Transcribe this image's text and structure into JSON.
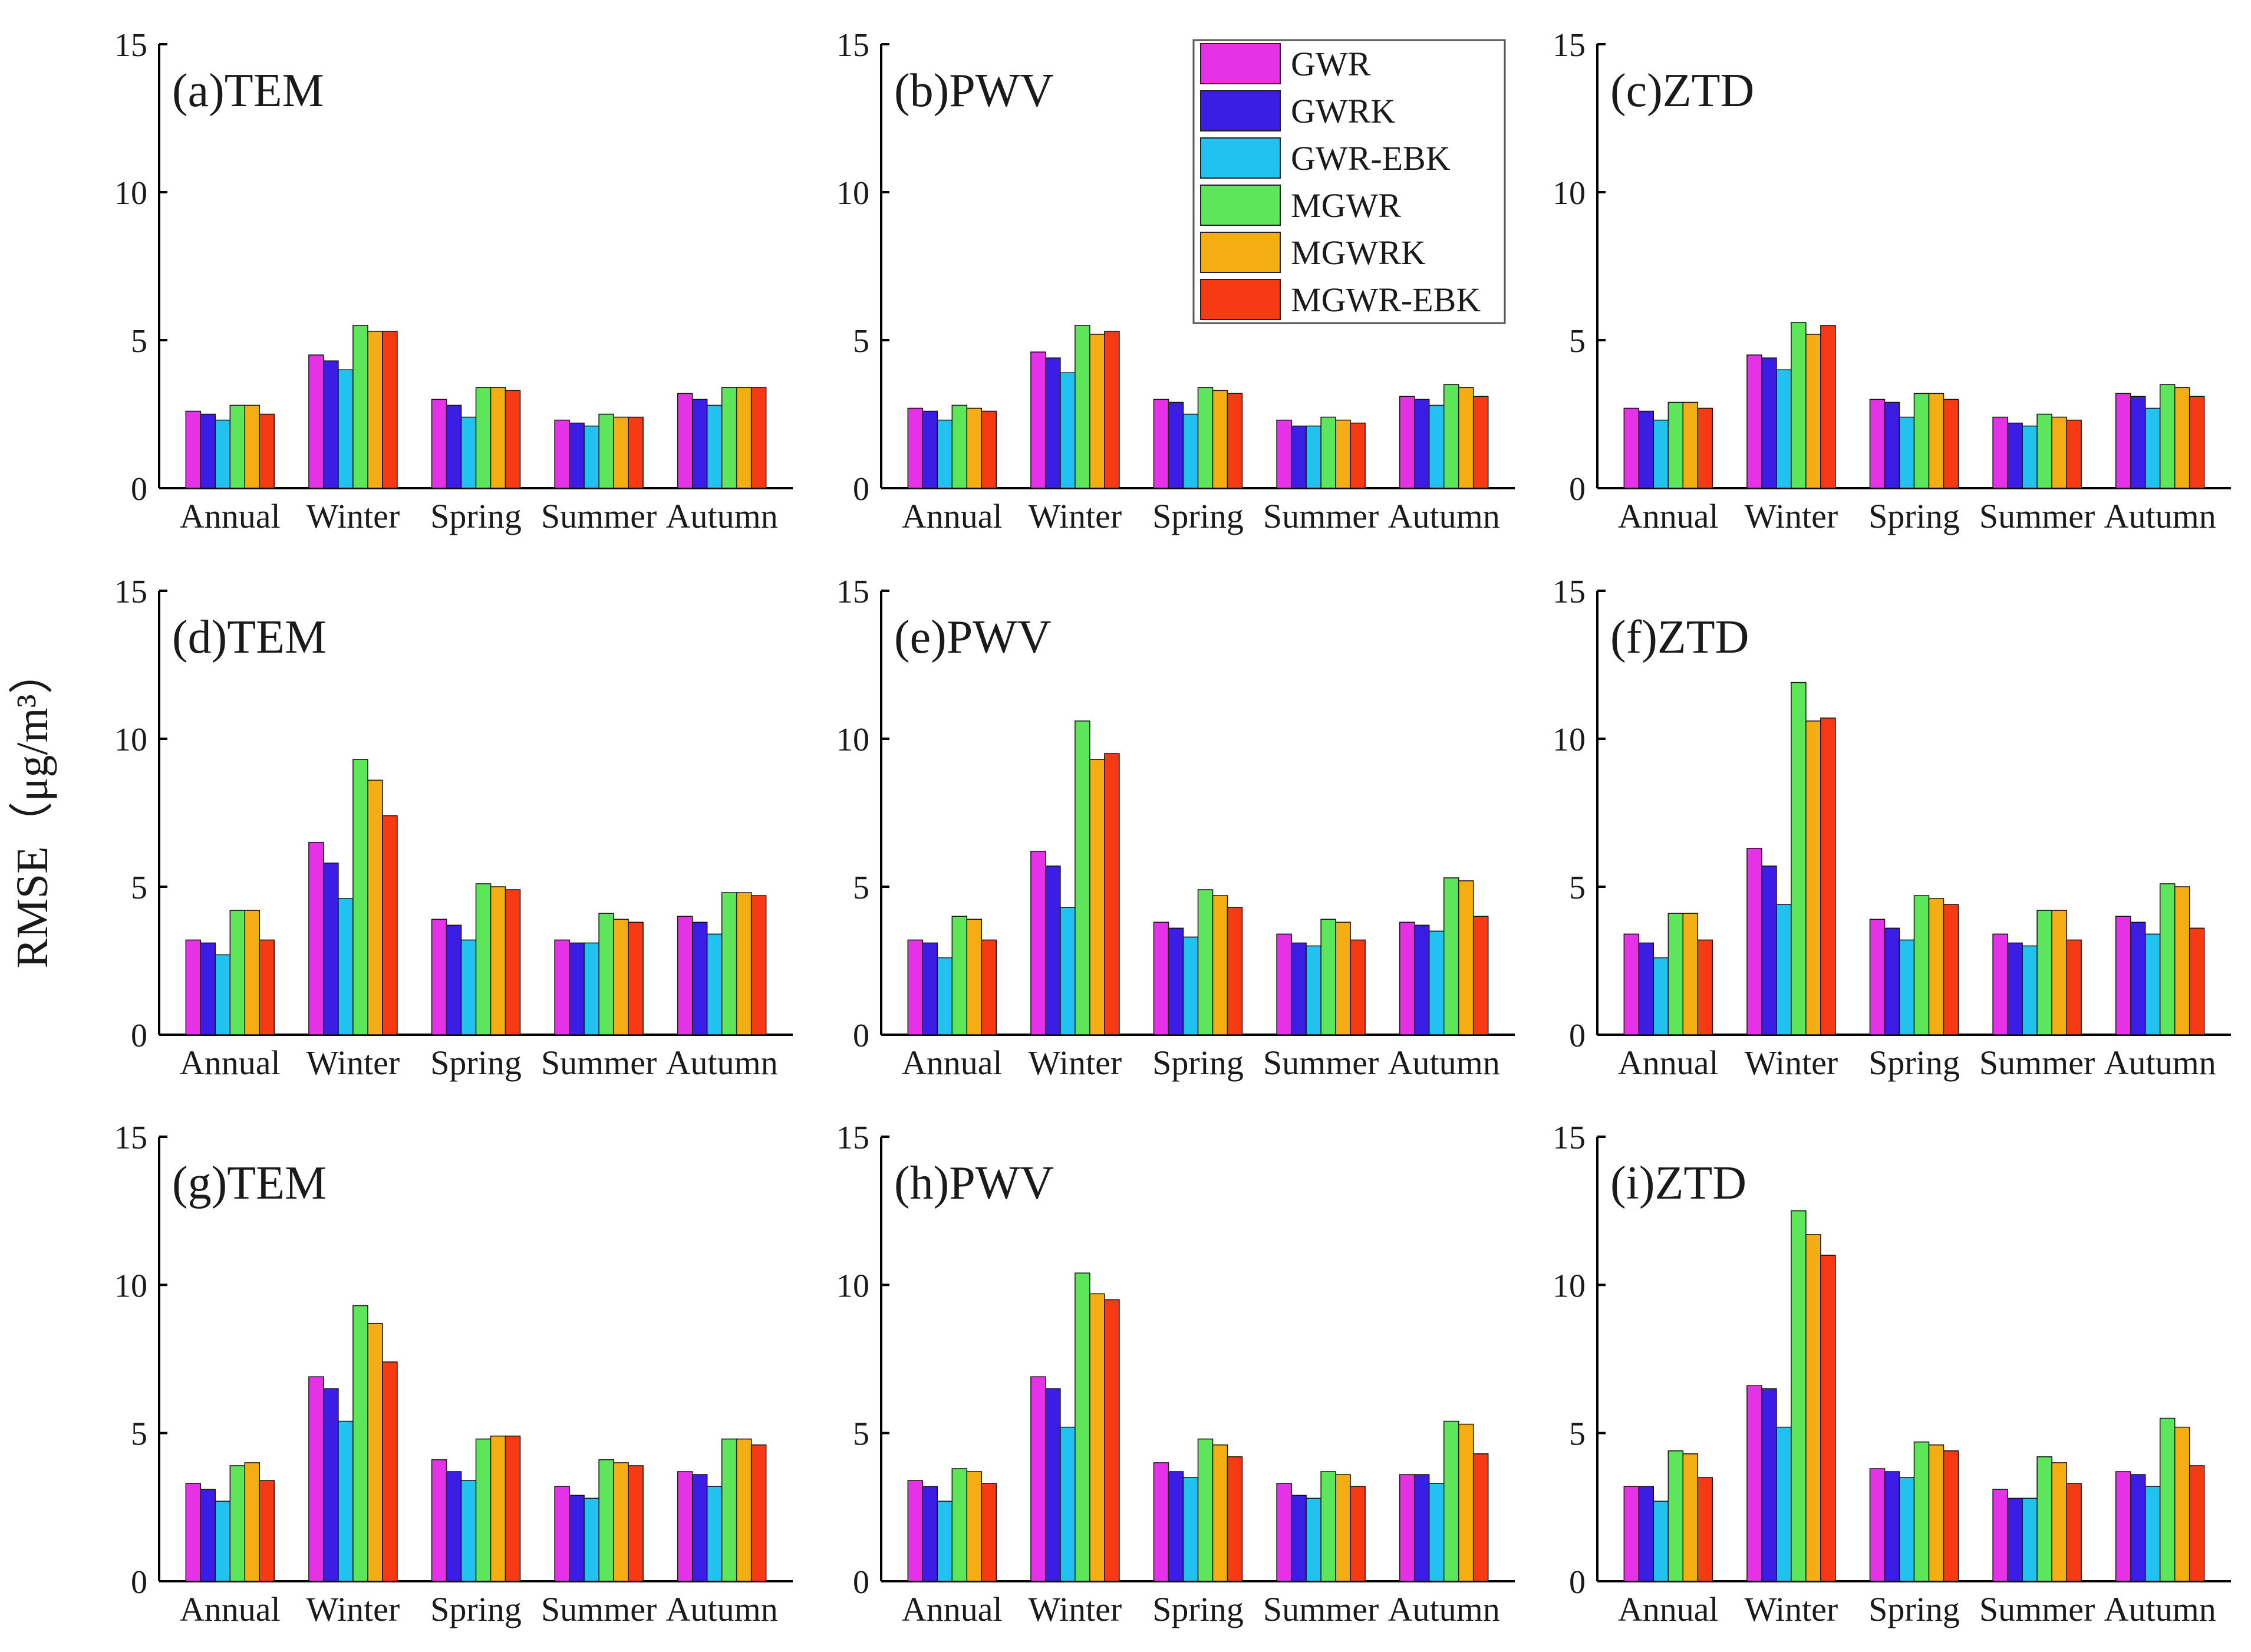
{
  "figure": {
    "ylabel": "RMSE（μg/m³）",
    "legend": {
      "placement": "top-right of panel (b)",
      "entries": [
        {
          "name": "GWR",
          "color": "#e632e6"
        },
        {
          "name": "GWRK",
          "color": "#3b1de6"
        },
        {
          "name": "GWR-EBK",
          "color": "#22c2f0"
        },
        {
          "name": "MGWR",
          "color": "#5ee65a"
        },
        {
          "name": "MGWRK",
          "color": "#f5ad14"
        },
        {
          "name": "MGWR-EBK",
          "color": "#f53a14"
        }
      ]
    }
  },
  "chart_data": [
    {
      "type": "bar",
      "title": "(a)TEM",
      "categories": [
        "Annual",
        "Winter",
        "Spring",
        "Summer",
        "Autumn"
      ],
      "ylim": [
        0,
        15
      ],
      "yticks": [
        "0",
        "5",
        "10",
        "15"
      ],
      "series": [
        {
          "name": "GWR",
          "values": [
            2.6,
            4.5,
            3.0,
            2.3,
            3.2
          ]
        },
        {
          "name": "GWRK",
          "values": [
            2.5,
            4.3,
            2.8,
            2.2,
            3.0
          ]
        },
        {
          "name": "GWR-EBK",
          "values": [
            2.3,
            4.0,
            2.4,
            2.1,
            2.8
          ]
        },
        {
          "name": "MGWR",
          "values": [
            2.8,
            5.5,
            3.4,
            2.5,
            3.4
          ]
        },
        {
          "name": "MGWRK",
          "values": [
            2.8,
            5.3,
            3.4,
            2.4,
            3.4
          ]
        },
        {
          "name": "MGWR-EBK",
          "values": [
            2.5,
            5.3,
            3.3,
            2.4,
            3.4
          ]
        }
      ]
    },
    {
      "type": "bar",
      "title": "(b)PWV",
      "categories": [
        "Annual",
        "Winter",
        "Spring",
        "Summer",
        "Autumn"
      ],
      "ylim": [
        0,
        15
      ],
      "yticks": [
        "0",
        "5",
        "10",
        "15"
      ],
      "series": [
        {
          "name": "GWR",
          "values": [
            2.7,
            4.6,
            3.0,
            2.3,
            3.1
          ]
        },
        {
          "name": "GWRK",
          "values": [
            2.6,
            4.4,
            2.9,
            2.1,
            3.0
          ]
        },
        {
          "name": "GWR-EBK",
          "values": [
            2.3,
            3.9,
            2.5,
            2.1,
            2.8
          ]
        },
        {
          "name": "MGWR",
          "values": [
            2.8,
            5.5,
            3.4,
            2.4,
            3.5
          ]
        },
        {
          "name": "MGWRK",
          "values": [
            2.7,
            5.2,
            3.3,
            2.3,
            3.4
          ]
        },
        {
          "name": "MGWR-EBK",
          "values": [
            2.6,
            5.3,
            3.2,
            2.2,
            3.1
          ]
        }
      ]
    },
    {
      "type": "bar",
      "title": "(c)ZTD",
      "categories": [
        "Annual",
        "Winter",
        "Spring",
        "Summer",
        "Autumn"
      ],
      "ylim": [
        0,
        15
      ],
      "yticks": [
        "0",
        "5",
        "10",
        "15"
      ],
      "series": [
        {
          "name": "GWR",
          "values": [
            2.7,
            4.5,
            3.0,
            2.4,
            3.2
          ]
        },
        {
          "name": "GWRK",
          "values": [
            2.6,
            4.4,
            2.9,
            2.2,
            3.1
          ]
        },
        {
          "name": "GWR-EBK",
          "values": [
            2.3,
            4.0,
            2.4,
            2.1,
            2.7
          ]
        },
        {
          "name": "MGWR",
          "values": [
            2.9,
            5.6,
            3.2,
            2.5,
            3.5
          ]
        },
        {
          "name": "MGWRK",
          "values": [
            2.9,
            5.2,
            3.2,
            2.4,
            3.4
          ]
        },
        {
          "name": "MGWR-EBK",
          "values": [
            2.7,
            5.5,
            3.0,
            2.3,
            3.1
          ]
        }
      ]
    },
    {
      "type": "bar",
      "title": "(d)TEM",
      "categories": [
        "Annual",
        "Winter",
        "Spring",
        "Summer",
        "Autumn"
      ],
      "ylim": [
        0,
        15
      ],
      "yticks": [
        "0",
        "5",
        "10",
        "15"
      ],
      "series": [
        {
          "name": "GWR",
          "values": [
            3.2,
            6.5,
            3.9,
            3.2,
            4.0
          ]
        },
        {
          "name": "GWRK",
          "values": [
            3.1,
            5.8,
            3.7,
            3.1,
            3.8
          ]
        },
        {
          "name": "GWR-EBK",
          "values": [
            2.7,
            4.6,
            3.2,
            3.1,
            3.4
          ]
        },
        {
          "name": "MGWR",
          "values": [
            4.2,
            9.3,
            5.1,
            4.1,
            4.8
          ]
        },
        {
          "name": "MGWRK",
          "values": [
            4.2,
            8.6,
            5.0,
            3.9,
            4.8
          ]
        },
        {
          "name": "MGWR-EBK",
          "values": [
            3.2,
            7.4,
            4.9,
            3.8,
            4.7
          ]
        }
      ]
    },
    {
      "type": "bar",
      "title": "(e)PWV",
      "categories": [
        "Annual",
        "Winter",
        "Spring",
        "Summer",
        "Autumn"
      ],
      "ylim": [
        0,
        15
      ],
      "yticks": [
        "0",
        "5",
        "10",
        "15"
      ],
      "series": [
        {
          "name": "GWR",
          "values": [
            3.2,
            6.2,
            3.8,
            3.4,
            3.8
          ]
        },
        {
          "name": "GWRK",
          "values": [
            3.1,
            5.7,
            3.6,
            3.1,
            3.7
          ]
        },
        {
          "name": "GWR-EBK",
          "values": [
            2.6,
            4.3,
            3.3,
            3.0,
            3.5
          ]
        },
        {
          "name": "MGWR",
          "values": [
            4.0,
            10.6,
            4.9,
            3.9,
            5.3
          ]
        },
        {
          "name": "MGWRK",
          "values": [
            3.9,
            9.3,
            4.7,
            3.8,
            5.2
          ]
        },
        {
          "name": "MGWR-EBK",
          "values": [
            3.2,
            9.5,
            4.3,
            3.2,
            4.0
          ]
        }
      ]
    },
    {
      "type": "bar",
      "title": "(f)ZTD",
      "categories": [
        "Annual",
        "Winter",
        "Spring",
        "Summer",
        "Autumn"
      ],
      "ylim": [
        0,
        15
      ],
      "yticks": [
        "0",
        "5",
        "10",
        "15"
      ],
      "series": [
        {
          "name": "GWR",
          "values": [
            3.4,
            6.3,
            3.9,
            3.4,
            4.0
          ]
        },
        {
          "name": "GWRK",
          "values": [
            3.1,
            5.7,
            3.6,
            3.1,
            3.8
          ]
        },
        {
          "name": "GWR-EBK",
          "values": [
            2.6,
            4.4,
            3.2,
            3.0,
            3.4
          ]
        },
        {
          "name": "MGWR",
          "values": [
            4.1,
            11.9,
            4.7,
            4.2,
            5.1
          ]
        },
        {
          "name": "MGWRK",
          "values": [
            4.1,
            10.6,
            4.6,
            4.2,
            5.0
          ]
        },
        {
          "name": "MGWR-EBK",
          "values": [
            3.2,
            10.7,
            4.4,
            3.2,
            3.6
          ]
        }
      ]
    },
    {
      "type": "bar",
      "title": "(g)TEM",
      "categories": [
        "Annual",
        "Winter",
        "Spring",
        "Summer",
        "Autumn"
      ],
      "ylim": [
        0,
        15
      ],
      "yticks": [
        "0",
        "5",
        "10",
        "15"
      ],
      "series": [
        {
          "name": "GWR",
          "values": [
            3.3,
            6.9,
            4.1,
            3.2,
            3.7
          ]
        },
        {
          "name": "GWRK",
          "values": [
            3.1,
            6.5,
            3.7,
            2.9,
            3.6
          ]
        },
        {
          "name": "GWR-EBK",
          "values": [
            2.7,
            5.4,
            3.4,
            2.8,
            3.2
          ]
        },
        {
          "name": "MGWR",
          "values": [
            3.9,
            9.3,
            4.8,
            4.1,
            4.8
          ]
        },
        {
          "name": "MGWRK",
          "values": [
            4.0,
            8.7,
            4.9,
            4.0,
            4.8
          ]
        },
        {
          "name": "MGWR-EBK",
          "values": [
            3.4,
            7.4,
            4.9,
            3.9,
            4.6
          ]
        }
      ]
    },
    {
      "type": "bar",
      "title": "(h)PWV",
      "categories": [
        "Annual",
        "Winter",
        "Spring",
        "Summer",
        "Autumn"
      ],
      "ylim": [
        0,
        15
      ],
      "yticks": [
        "0",
        "5",
        "10",
        "15"
      ],
      "series": [
        {
          "name": "GWR",
          "values": [
            3.4,
            6.9,
            4.0,
            3.3,
            3.6
          ]
        },
        {
          "name": "GWRK",
          "values": [
            3.2,
            6.5,
            3.7,
            2.9,
            3.6
          ]
        },
        {
          "name": "GWR-EBK",
          "values": [
            2.7,
            5.2,
            3.5,
            2.8,
            3.3
          ]
        },
        {
          "name": "MGWR",
          "values": [
            3.8,
            10.4,
            4.8,
            3.7,
            5.4
          ]
        },
        {
          "name": "MGWRK",
          "values": [
            3.7,
            9.7,
            4.6,
            3.6,
            5.3
          ]
        },
        {
          "name": "MGWR-EBK",
          "values": [
            3.3,
            9.5,
            4.2,
            3.2,
            4.3
          ]
        }
      ]
    },
    {
      "type": "bar",
      "title": "(i)ZTD",
      "categories": [
        "Annual",
        "Winter",
        "Spring",
        "Summer",
        "Autumn"
      ],
      "ylim": [
        0,
        15
      ],
      "yticks": [
        "0",
        "5",
        "10",
        "15"
      ],
      "series": [
        {
          "name": "GWR",
          "values": [
            3.2,
            6.6,
            3.8,
            3.1,
            3.7
          ]
        },
        {
          "name": "GWRK",
          "values": [
            3.2,
            6.5,
            3.7,
            2.8,
            3.6
          ]
        },
        {
          "name": "GWR-EBK",
          "values": [
            2.7,
            5.2,
            3.5,
            2.8,
            3.2
          ]
        },
        {
          "name": "MGWR",
          "values": [
            4.4,
            12.5,
            4.7,
            4.2,
            5.5
          ]
        },
        {
          "name": "MGWRK",
          "values": [
            4.3,
            11.7,
            4.6,
            4.0,
            5.2
          ]
        },
        {
          "name": "MGWR-EBK",
          "values": [
            3.5,
            11.0,
            4.4,
            3.3,
            3.9
          ]
        }
      ]
    }
  ]
}
